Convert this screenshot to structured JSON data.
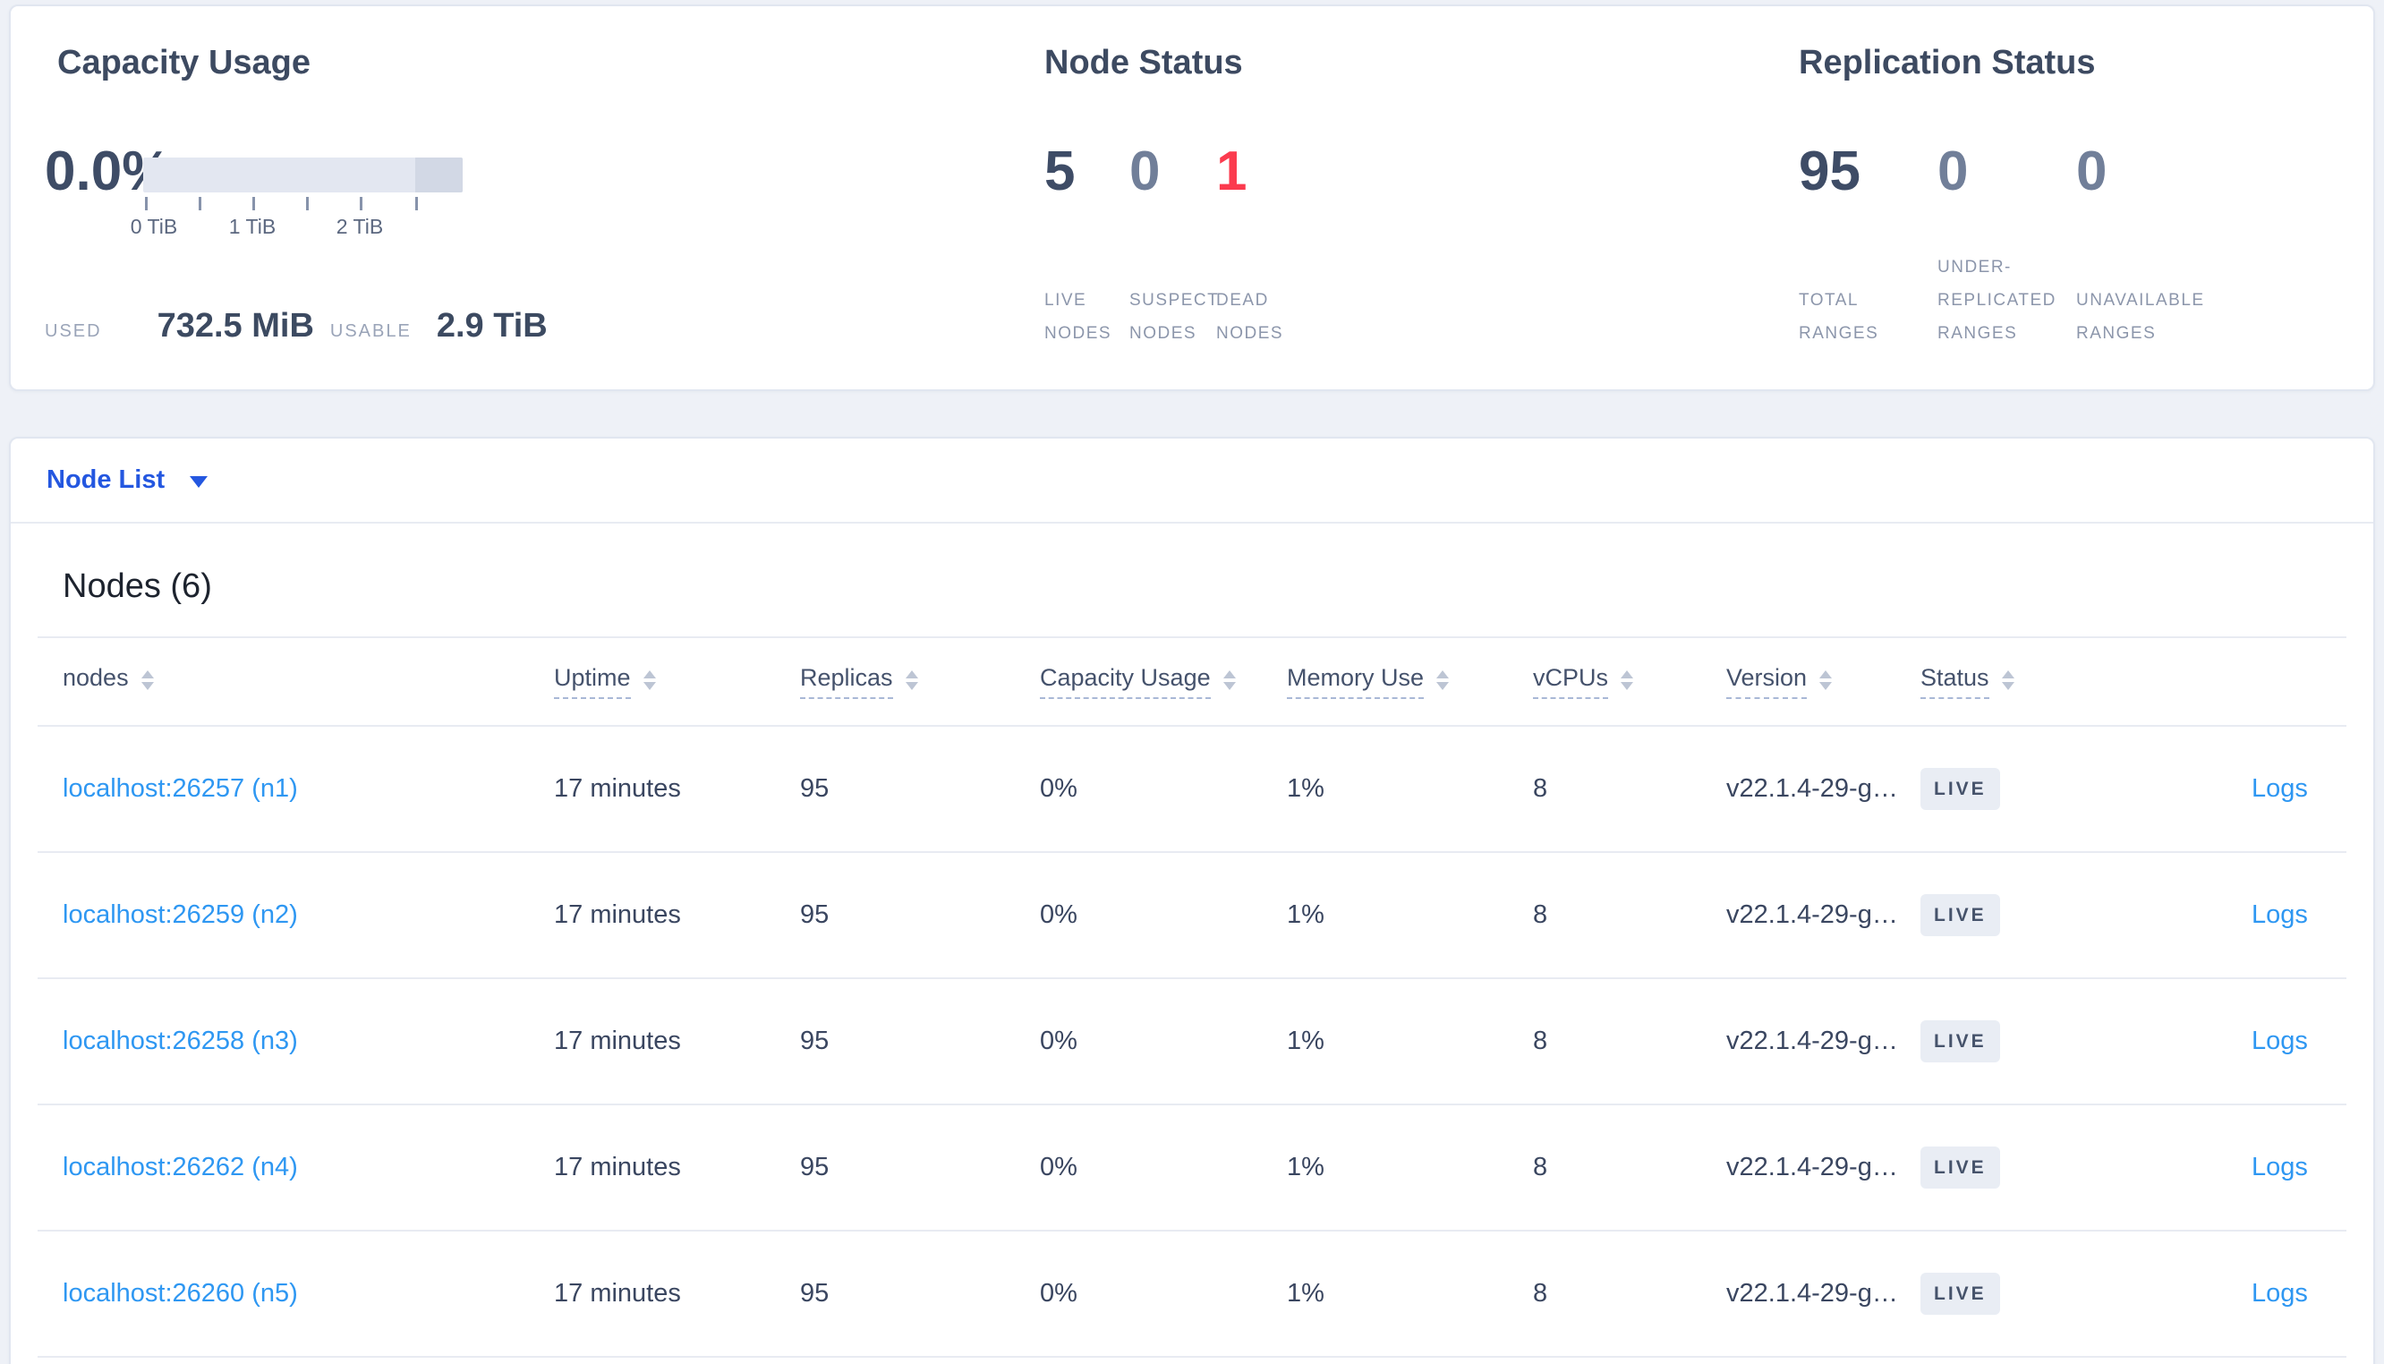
{
  "summary": {
    "capacity": {
      "title": "Capacity Usage",
      "percent_used": "0.0%",
      "tick_labels": [
        "0 TiB",
        "1 TiB",
        "2 TiB"
      ],
      "used_label": "USED",
      "used_value": "732.5 MiB",
      "usable_label": "USABLE",
      "usable_value": "2.9 TiB"
    },
    "node_status": {
      "title": "Node Status",
      "metrics": [
        {
          "value": "5",
          "label": "LIVE NODES"
        },
        {
          "value": "0",
          "label": "SUSPECT NODES"
        },
        {
          "value": "1",
          "label": "DEAD NODES"
        }
      ]
    },
    "replication": {
      "title": "Replication Status",
      "metrics": [
        {
          "value": "95",
          "label": "TOTAL RANGES"
        },
        {
          "value": "0",
          "label": "UNDER-REPLICATED RANGES"
        },
        {
          "value": "0",
          "label": "UNAVAILABLE RANGES"
        }
      ]
    }
  },
  "view_selector": {
    "label": "Node List"
  },
  "nodes_section": {
    "heading": "Nodes (6)",
    "columns": [
      {
        "key": "node",
        "label": "nodes",
        "dashed": false
      },
      {
        "key": "uptime",
        "label": "Uptime",
        "dashed": true
      },
      {
        "key": "replicas",
        "label": "Replicas",
        "dashed": true
      },
      {
        "key": "capacity",
        "label": "Capacity Usage",
        "dashed": true
      },
      {
        "key": "memory",
        "label": "Memory Use",
        "dashed": true
      },
      {
        "key": "vcpus",
        "label": "vCPUs",
        "dashed": true
      },
      {
        "key": "version",
        "label": "Version",
        "dashed": true
      },
      {
        "key": "status",
        "label": "Status",
        "dashed": true
      },
      {
        "key": "logs",
        "label": "",
        "dashed": false
      }
    ],
    "rows": [
      {
        "node": "localhost:26257 (n1)",
        "uptime": "17 minutes",
        "replicas": "95",
        "capacity": "0%",
        "memory": "1%",
        "vcpus": "8",
        "version": "v22.1.4-29-g…",
        "status": "LIVE",
        "logs": "Logs"
      },
      {
        "node": "localhost:26259 (n2)",
        "uptime": "17 minutes",
        "replicas": "95",
        "capacity": "0%",
        "memory": "1%",
        "vcpus": "8",
        "version": "v22.1.4-29-g…",
        "status": "LIVE",
        "logs": "Logs"
      },
      {
        "node": "localhost:26258 (n3)",
        "uptime": "17 minutes",
        "replicas": "95",
        "capacity": "0%",
        "memory": "1%",
        "vcpus": "8",
        "version": "v22.1.4-29-g…",
        "status": "LIVE",
        "logs": "Logs"
      },
      {
        "node": "localhost:26262 (n4)",
        "uptime": "17 minutes",
        "replicas": "95",
        "capacity": "0%",
        "memory": "1%",
        "vcpus": "8",
        "version": "v22.1.4-29-g…",
        "status": "LIVE",
        "logs": "Logs"
      },
      {
        "node": "localhost:26260 (n5)",
        "uptime": "17 minutes",
        "replicas": "95",
        "capacity": "0%",
        "memory": "1%",
        "vcpus": "8",
        "version": "v22.1.4-29-g…",
        "status": "LIVE",
        "logs": "Logs"
      }
    ]
  },
  "colors": {
    "accent_blue": "#2457e0",
    "link_blue": "#2e97f2",
    "danger_red": "#fb3b4e",
    "dark_slate": "#3e4c66",
    "muted_slate": "#717f99",
    "badge_bg": "#e9edf4",
    "bar_track": "#e3e7f1",
    "bar_cap": "#d2d8e5"
  }
}
